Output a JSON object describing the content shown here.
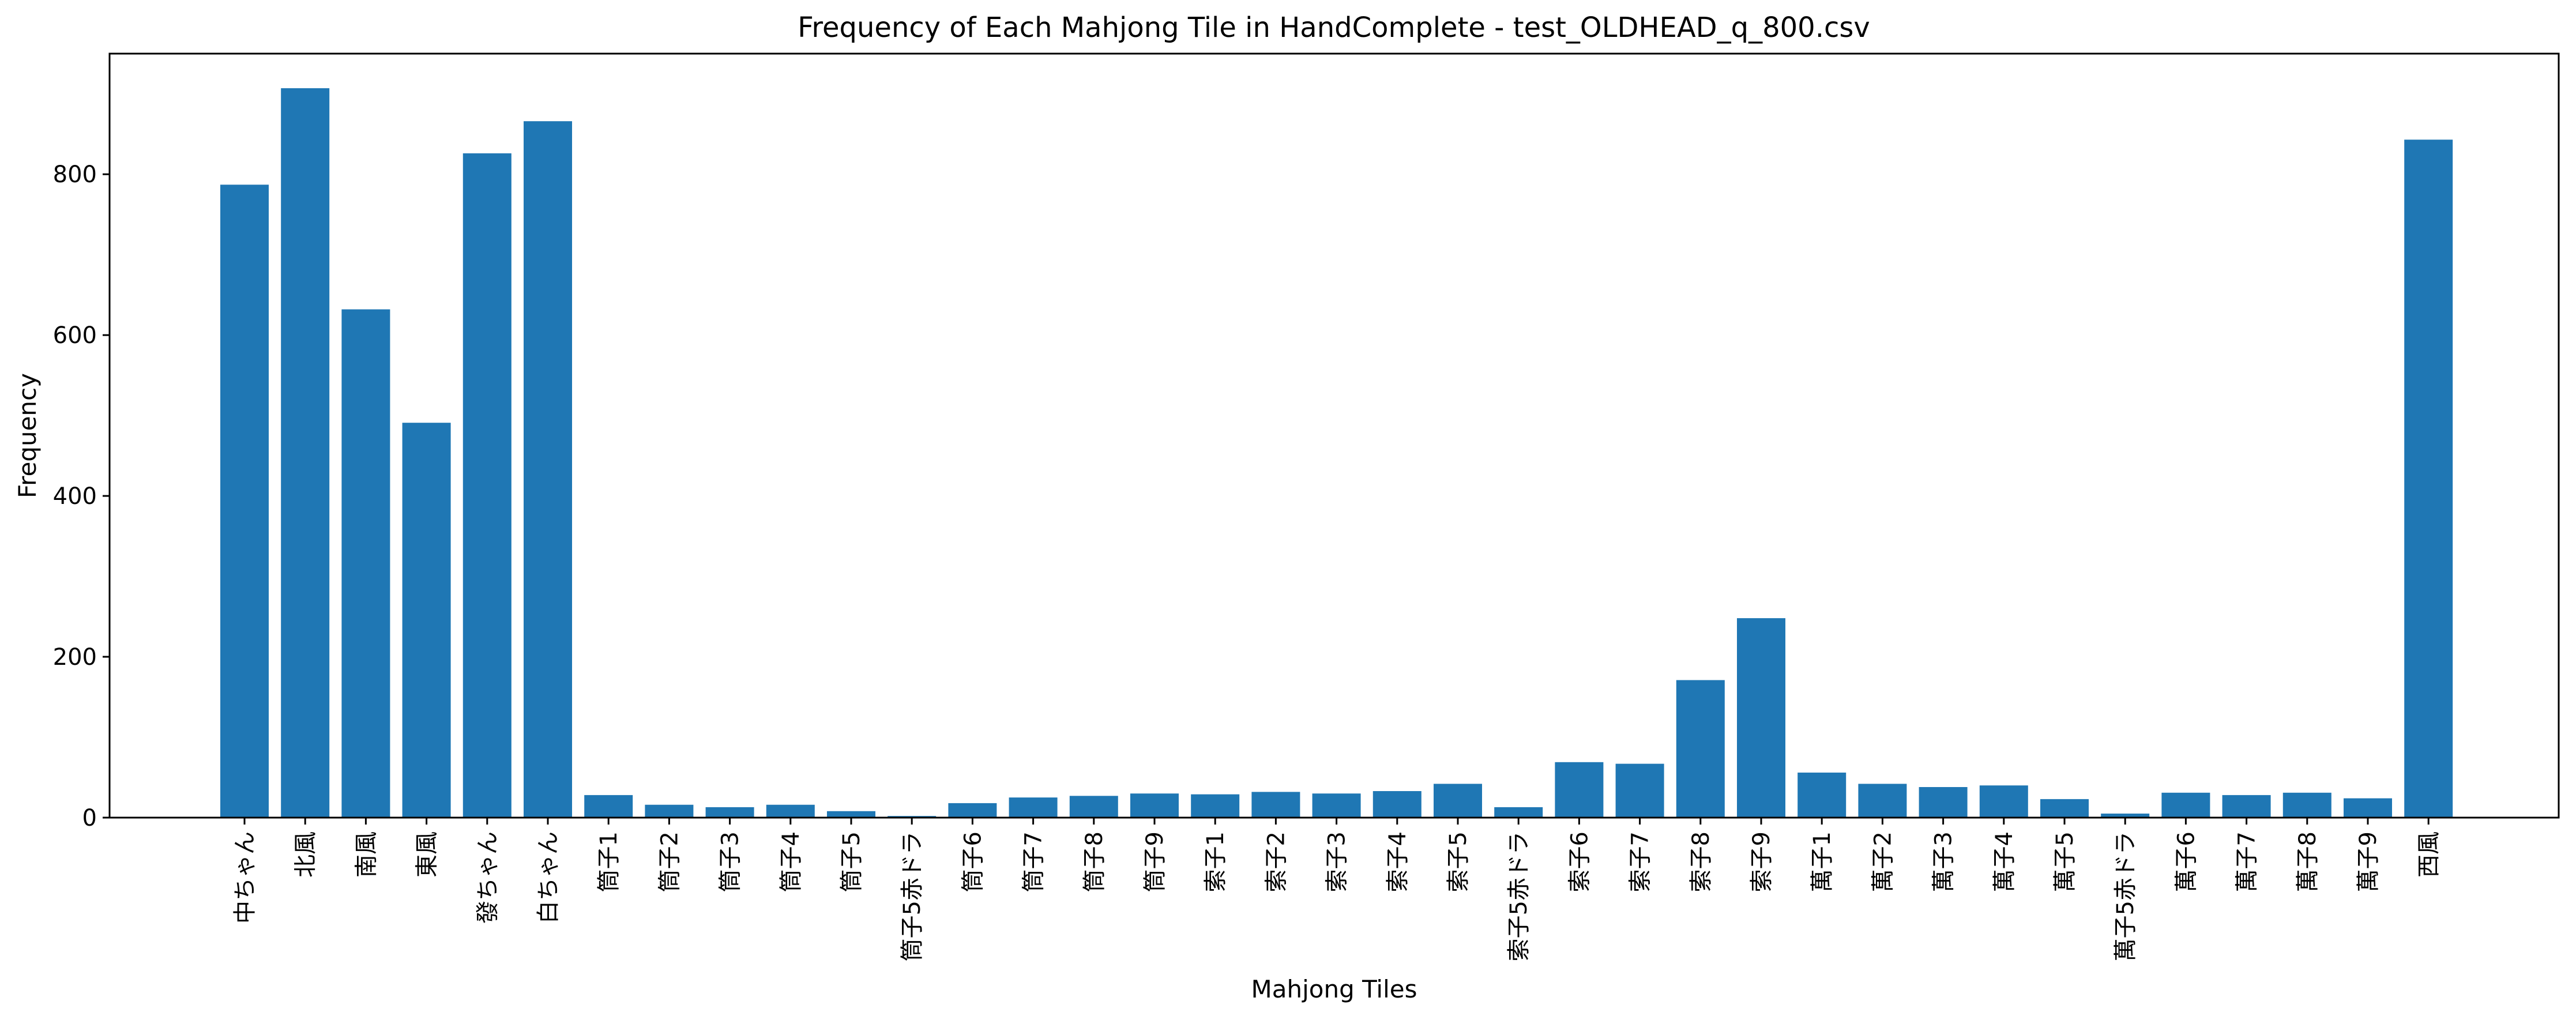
{
  "chart_data": {
    "type": "bar",
    "title": "Frequency of Each Mahjong Tile in HandComplete - test_OLDHEAD_q_800.csv",
    "xlabel": "Mahjong Tiles",
    "ylabel": "Frequency",
    "ylim": [
      0,
      950
    ],
    "yticks": [
      0,
      200,
      400,
      600,
      800
    ],
    "grid": false,
    "bar_color": "#1f77b4",
    "categories": [
      "中ちゃん",
      "北風",
      "南風",
      "東風",
      "發ちゃん",
      "白ちゃん",
      "筒子1",
      "筒子2",
      "筒子3",
      "筒子4",
      "筒子5",
      "筒子5赤ドラ",
      "筒子6",
      "筒子7",
      "筒子8",
      "筒子9",
      "索子1",
      "索子2",
      "索子3",
      "索子4",
      "索子5",
      "索子5赤ドラ",
      "索子6",
      "索子7",
      "索子8",
      "索子9",
      "萬子1",
      "萬子2",
      "萬子3",
      "萬子4",
      "萬子5",
      "萬子5赤ドラ",
      "萬子6",
      "萬子7",
      "萬子8",
      "萬子9",
      "西風"
    ],
    "values": [
      787,
      907,
      632,
      491,
      826,
      866,
      28,
      16,
      13,
      16,
      8,
      2,
      18,
      25,
      27,
      30,
      29,
      32,
      30,
      33,
      42,
      13,
      69,
      67,
      171,
      248,
      56,
      42,
      38,
      40,
      23,
      5,
      31,
      28,
      31,
      24,
      843
    ]
  }
}
